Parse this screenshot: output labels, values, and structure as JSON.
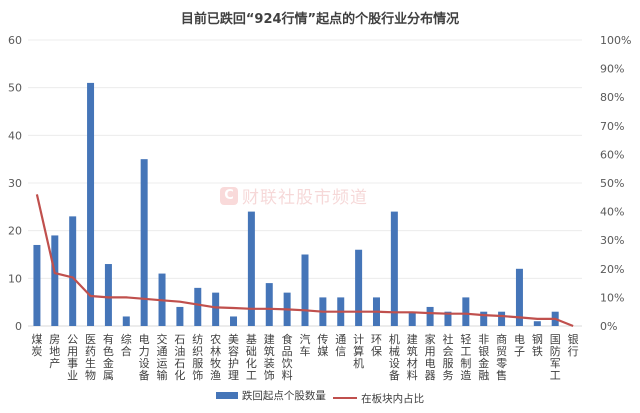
{
  "title": "目前已跌回“924行情”起点的个股行业分布情况",
  "watermark": {
    "logo": "C",
    "text": "财联社股市频道",
    "icon": "cls-logo-icon"
  },
  "legend": [
    {
      "label": "跌回起点个股数量",
      "color": "#4575b8",
      "type": "bar"
    },
    {
      "label": "在板块内占比",
      "color": "#c0504d",
      "type": "line"
    }
  ],
  "chart_data": {
    "type": "bar",
    "title": "目前已跌回“924行情”起点的个股行业分布情况",
    "xlabel": "",
    "ylabel": "",
    "y_left_ticks": [
      "0",
      "10",
      "20",
      "30",
      "40",
      "50",
      "60"
    ],
    "y_right_ticks": [
      "0%",
      "10%",
      "20%",
      "30%",
      "40%",
      "50%",
      "60%",
      "70%",
      "80%",
      "90%",
      "100%"
    ],
    "ylim": [
      0,
      60
    ],
    "y2lim": [
      0,
      100
    ],
    "grid": true,
    "legend_position": "bottom",
    "categories": [
      "煤炭",
      "房地产",
      "公用事业",
      "医药生物",
      "有色金属",
      "综合",
      "电力设备",
      "交通运输",
      "石油石化",
      "纺织服饰",
      "农林牧渔",
      "美容护理",
      "基础化工",
      "建筑装饰",
      "食品饮料",
      "汽车",
      "传媒",
      "通信",
      "计算机",
      "环保",
      "机械设备",
      "建筑材料",
      "家用电器",
      "社会服务",
      "轻工制造",
      "非银金融",
      "商贸零售",
      "电子",
      "钢铁",
      "国防军工",
      "银行"
    ],
    "series": [
      {
        "name": "跌回起点个股数量",
        "type": "bar",
        "axis": "left",
        "color": "#4575b8",
        "values": [
          17,
          19,
          23,
          51,
          13,
          2,
          35,
          11,
          4,
          8,
          7,
          2,
          24,
          9,
          7,
          15,
          6,
          6,
          16,
          6,
          24,
          3,
          4,
          3,
          6,
          3,
          3,
          12,
          1,
          3,
          0
        ]
      },
      {
        "name": "在板块内占比",
        "type": "line",
        "axis": "right",
        "unit": "%",
        "color": "#c0504d",
        "values": [
          46,
          18.5,
          17,
          10.5,
          10,
          10,
          9.5,
          9,
          8.5,
          7.5,
          6.5,
          6.3,
          6,
          6,
          5.8,
          5.5,
          5,
          5,
          5,
          5,
          4.8,
          4.8,
          4.5,
          4.3,
          4.3,
          3.8,
          3.5,
          3,
          2.5,
          2.5,
          0
        ]
      }
    ]
  }
}
